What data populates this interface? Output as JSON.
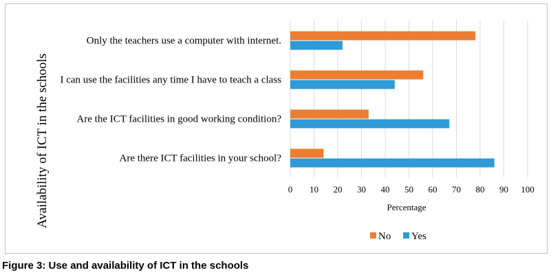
{
  "chart_data": {
    "type": "bar",
    "orientation": "horizontal",
    "title": "",
    "categories": [
      "Only the teachers use a computer with internet.",
      "I can use the facilities any time I have to teach a class",
      "Are the ICT facilities in good working condition?",
      "Are there ICT facilities in your school?"
    ],
    "series": [
      {
        "name": "No",
        "color": "#ED7D31",
        "values": [
          78,
          56,
          33,
          14
        ]
      },
      {
        "name": "Yes",
        "color": "#2E9BD6",
        "values": [
          22,
          44,
          67,
          86
        ]
      }
    ],
    "xlabel": "Percentage",
    "ylabel": "Availability of ICT  in the schools",
    "xlim": [
      0,
      100
    ],
    "xticks": [
      "0",
      "10",
      "20",
      "30",
      "40",
      "50",
      "60",
      "70",
      "80",
      "90",
      "100"
    ],
    "legend": {
      "position": "bottom",
      "entries": [
        "No",
        "Yes"
      ]
    },
    "grid": true
  },
  "caption": "Figure 3: Use and availability of ICT in the schools"
}
